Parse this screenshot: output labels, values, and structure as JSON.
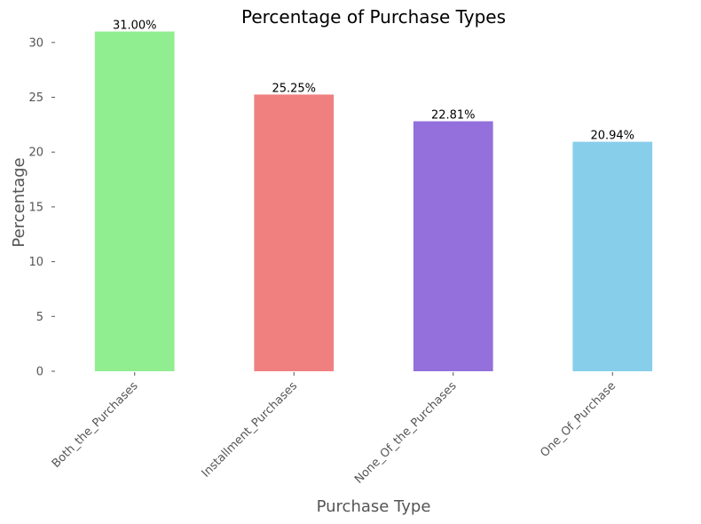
{
  "chart_data": {
    "type": "bar",
    "title": "Percentage of Purchase Types",
    "xlabel": "Purchase Type",
    "ylabel": "Percentage",
    "categories": [
      "Both_the_Purchases",
      "Installment_Purchases",
      "None_Of_the_Purchases",
      "One_Of_Purchase"
    ],
    "values": [
      31.0,
      25.25,
      22.81,
      20.94
    ],
    "data_labels": [
      "31.00%",
      "25.25%",
      "22.81%",
      "20.94%"
    ],
    "colors": [
      "#90ee90",
      "#f08080",
      "#9370db",
      "#87ceeb"
    ],
    "ylim": [
      0,
      31
    ],
    "yticks": [
      0,
      5,
      10,
      15,
      20,
      25,
      30
    ],
    "grid": false,
    "legend": "none"
  }
}
